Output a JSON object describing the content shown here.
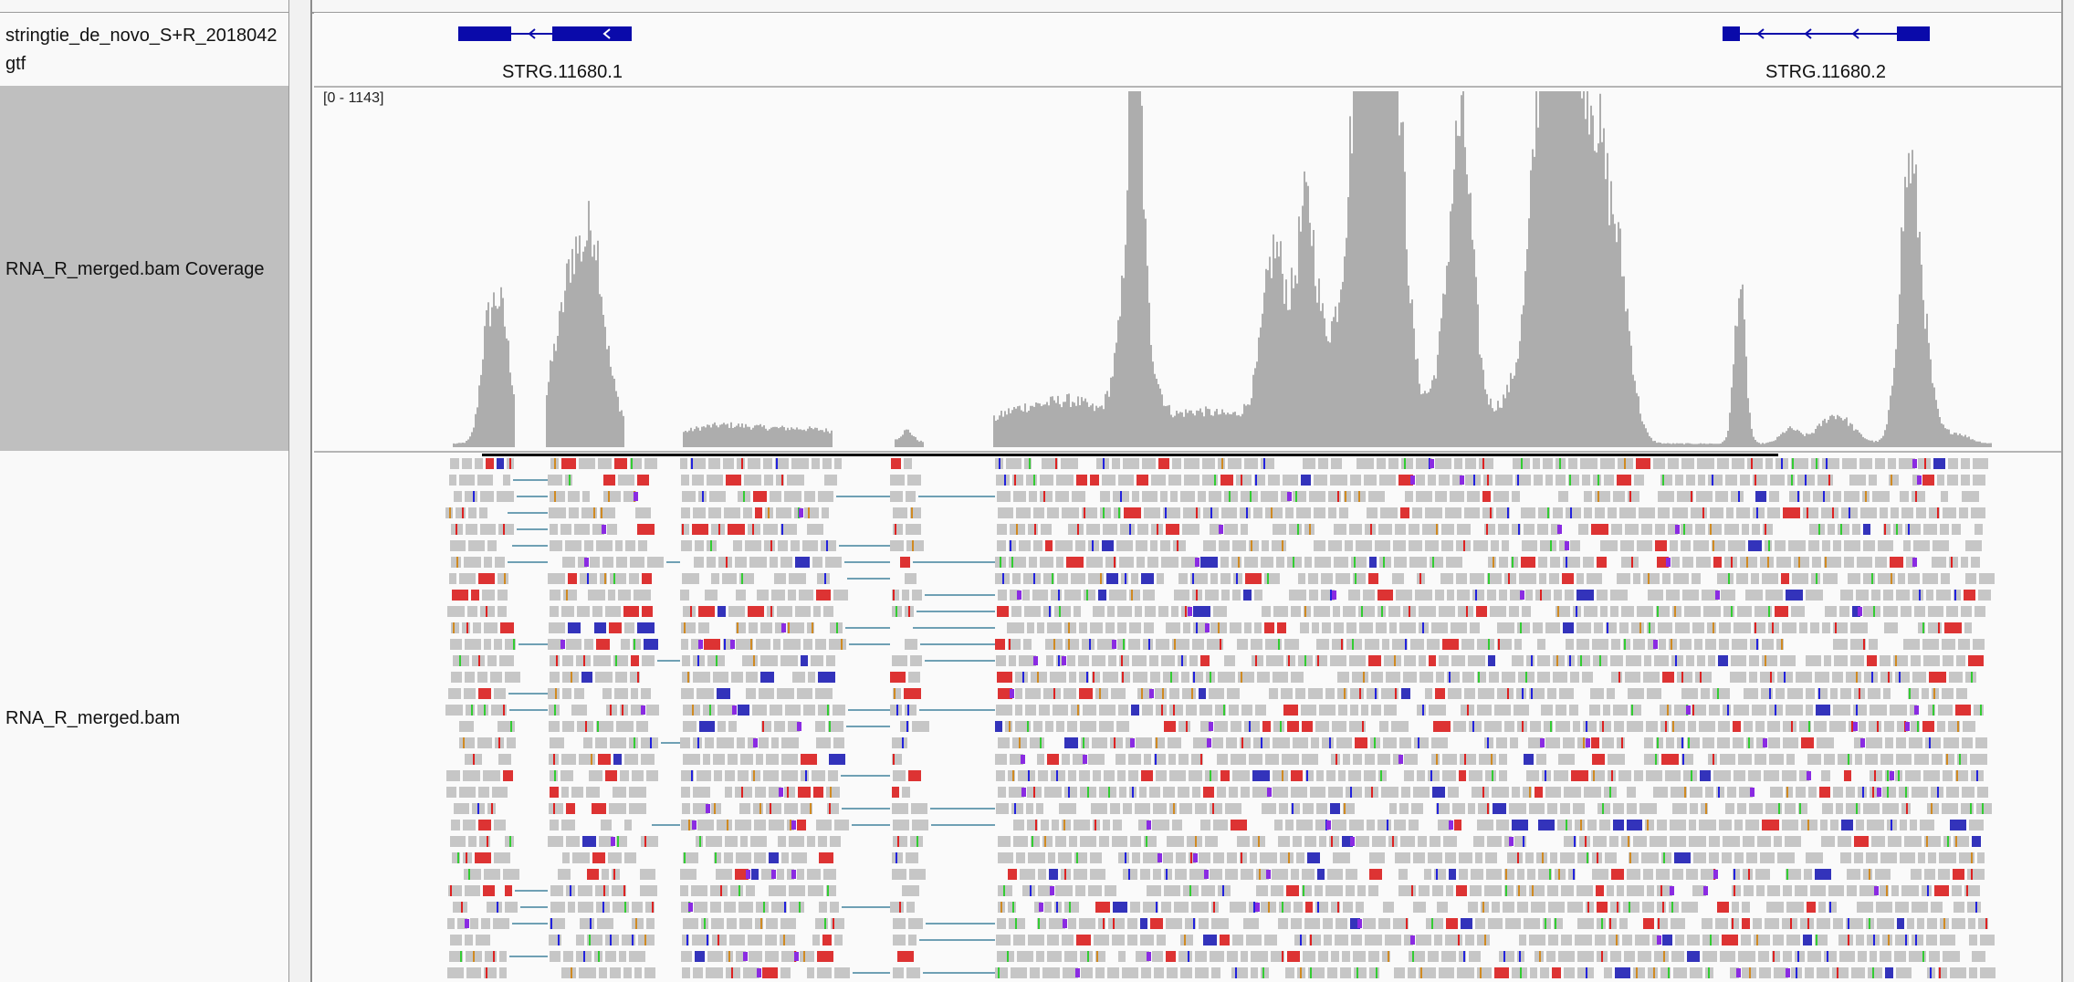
{
  "tracks": {
    "annotation_name_line1": "stringtie_de_novo_S+R_2018042",
    "annotation_name_line2": "gtf",
    "coverage_name": "RNA_R_merged.bam Coverage",
    "alignment_name": "RNA_R_merged.bam"
  },
  "genes": [
    {
      "label": "STRG.11680.1",
      "strand": "-"
    },
    {
      "label": "STRG.11680.2",
      "strand": "-"
    }
  ],
  "coverage": {
    "range_label": "[0 - 1143]"
  },
  "colors": {
    "gene_feature": "#0a0aaa",
    "coverage_fill": "#adadad",
    "read": "#c6c6c6",
    "splice_junction": "#6fa0b4",
    "mismatch_a": "#33cc33",
    "mismatch_c": "#2222dd",
    "mismatch_g": "#d08a22",
    "mismatch_t": "#dd2222",
    "insertion": "#8a2be2",
    "soft_clip_block": "#dd3333",
    "indel_block": "#3333bb"
  }
}
